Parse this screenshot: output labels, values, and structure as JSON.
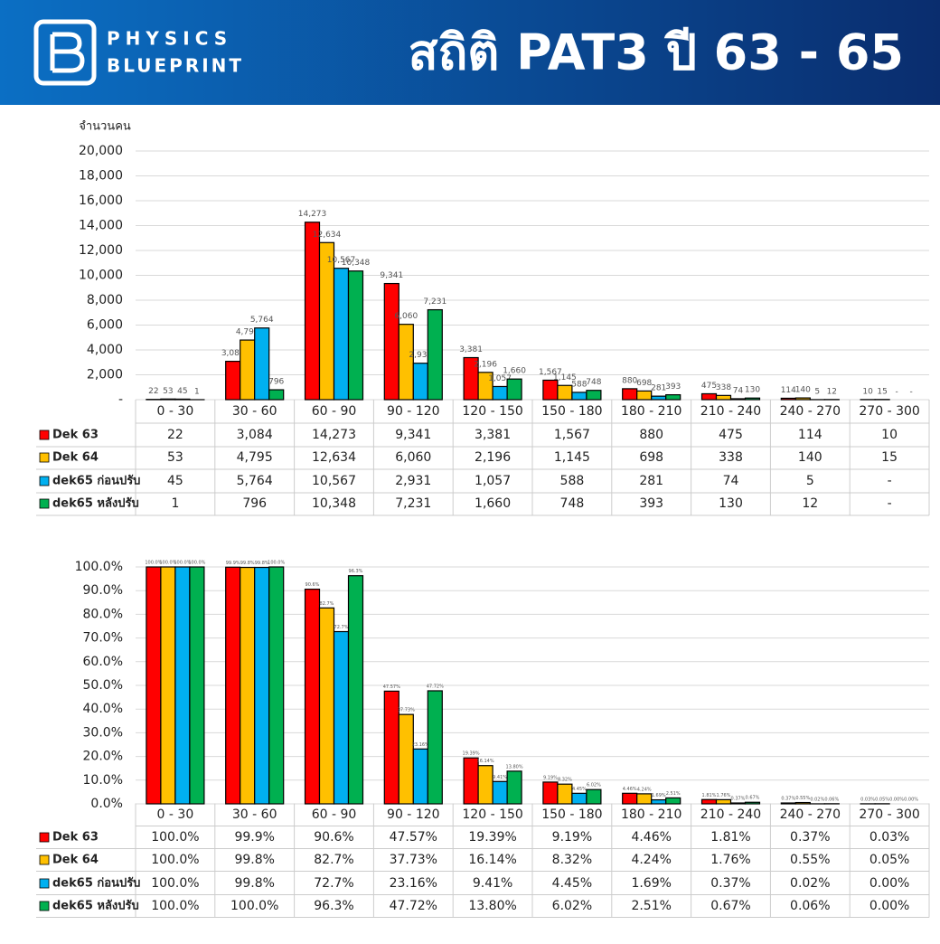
{
  "header": {
    "brand_line1": "PHYSICS",
    "brand_line2": "BLUEPRINT",
    "title": "สถิติ PAT3 ปี 63 - 65"
  },
  "chart_data": [
    {
      "type": "bar",
      "ylabel": "จำนวนคน",
      "categories": [
        "0 - 30",
        "30 - 60",
        "60 - 90",
        "90 - 120",
        "120 - 150",
        "150 - 180",
        "180 - 210",
        "210 - 240",
        "240 - 270",
        "270 - 300"
      ],
      "ylim": [
        0,
        20000
      ],
      "yticks": [
        {
          "value": 0,
          "label": "-"
        },
        {
          "value": 2000,
          "label": "2,000"
        },
        {
          "value": 4000,
          "label": "4,000"
        },
        {
          "value": 6000,
          "label": "6,000"
        },
        {
          "value": 8000,
          "label": "8,000"
        },
        {
          "value": 10000,
          "label": "10,000"
        },
        {
          "value": 12000,
          "label": "12,000"
        },
        {
          "value": 14000,
          "label": "14,000"
        },
        {
          "value": 16000,
          "label": "16,000"
        },
        {
          "value": 18000,
          "label": "18,000"
        },
        {
          "value": 20000,
          "label": "20,000"
        }
      ],
      "grid": true,
      "series": [
        {
          "name": "Dek 63",
          "color": "#ff0000",
          "values": [
            22,
            3084,
            14273,
            9341,
            3381,
            1567,
            880,
            475,
            114,
            10
          ],
          "value_labels": [
            "22",
            "3,084",
            "14,273",
            "9,341",
            "3,381",
            "1,567",
            "880",
            "475",
            "114",
            "10"
          ]
        },
        {
          "name": "Dek 64",
          "color": "#ffc000",
          "values": [
            53,
            4795,
            12634,
            6060,
            2196,
            1145,
            698,
            338,
            140,
            15
          ],
          "value_labels": [
            "53",
            "4,795",
            "12,634",
            "6,060",
            "2,196",
            "1,145",
            "698",
            "338",
            "140",
            "15"
          ]
        },
        {
          "name": "dek65 ก่อนปรับ",
          "color": "#00b0f0",
          "values": [
            45,
            5764,
            10567,
            2931,
            1057,
            588,
            281,
            74,
            5,
            null
          ],
          "value_labels": [
            "45",
            "5,764",
            "10,567",
            "2,931",
            "1,057",
            "588",
            "281",
            "74",
            "5",
            "-"
          ]
        },
        {
          "name": "dek65 หลังปรับ",
          "color": "#00b050",
          "values": [
            1,
            796,
            10348,
            7231,
            1660,
            748,
            393,
            130,
            12,
            null
          ],
          "value_labels": [
            "1",
            "796",
            "10,348",
            "7,231",
            "1,660",
            "748",
            "393",
            "130",
            "12",
            "-"
          ]
        }
      ]
    },
    {
      "type": "bar",
      "categories": [
        "0 - 30",
        "30 - 60",
        "60 - 90",
        "90 - 120",
        "120 - 150",
        "150 - 180",
        "180 - 210",
        "210 - 240",
        "240 - 270",
        "270 - 300"
      ],
      "ylim": [
        0,
        100
      ],
      "yticks": [
        {
          "value": 0,
          "label": "0.0%"
        },
        {
          "value": 10,
          "label": "10.0%"
        },
        {
          "value": 20,
          "label": "20.0%"
        },
        {
          "value": 30,
          "label": "30.0%"
        },
        {
          "value": 40,
          "label": "40.0%"
        },
        {
          "value": 50,
          "label": "50.0%"
        },
        {
          "value": 60,
          "label": "60.0%"
        },
        {
          "value": 70,
          "label": "70.0%"
        },
        {
          "value": 80,
          "label": "80.0%"
        },
        {
          "value": 90,
          "label": "90.0%"
        },
        {
          "value": 100,
          "label": "100.0%"
        }
      ],
      "grid": true,
      "series": [
        {
          "name": "Dek 63",
          "color": "#ff0000",
          "values": [
            100.0,
            99.9,
            90.6,
            47.57,
            19.39,
            9.19,
            4.46,
            1.81,
            0.37,
            0.03
          ],
          "value_labels": [
            "100.0%",
            "99.9%",
            "90.6%",
            "47.57%",
            "19.39%",
            "9.19%",
            "4.46%",
            "1.81%",
            "0.37%",
            "0.03%"
          ]
        },
        {
          "name": "Dek 64",
          "color": "#ffc000",
          "values": [
            100.0,
            99.8,
            82.7,
            37.73,
            16.14,
            8.32,
            4.24,
            1.76,
            0.55,
            0.05
          ],
          "value_labels": [
            "100.0%",
            "99.8%",
            "82.7%",
            "37.73%",
            "16.14%",
            "8.32%",
            "4.24%",
            "1.76%",
            "0.55%",
            "0.05%"
          ]
        },
        {
          "name": "dek65 ก่อนปรับ",
          "color": "#00b0f0",
          "values": [
            100.0,
            99.8,
            72.7,
            23.16,
            9.41,
            4.45,
            1.69,
            0.37,
            0.02,
            0.0
          ],
          "value_labels": [
            "100.0%",
            "99.8%",
            "72.7%",
            "23.16%",
            "9.41%",
            "4.45%",
            "1.69%",
            "0.37%",
            "0.02%",
            "0.00%"
          ]
        },
        {
          "name": "dek65 หลังปรับ",
          "color": "#00b050",
          "values": [
            100.0,
            100.0,
            96.3,
            47.72,
            13.8,
            6.02,
            2.51,
            0.67,
            0.06,
            0.0
          ],
          "value_labels": [
            "100.0%",
            "100.0%",
            "96.3%",
            "47.72%",
            "13.80%",
            "6.02%",
            "2.51%",
            "0.67%",
            "0.06%",
            "0.00%"
          ]
        }
      ]
    }
  ]
}
